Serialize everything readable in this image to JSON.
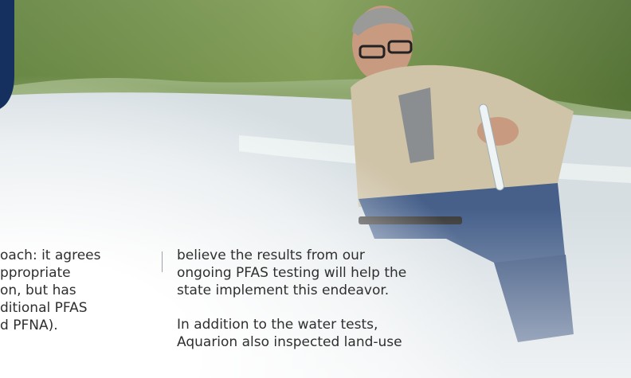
{
  "left_column": {
    "lines": [
      "oach: it agrees",
      "ppropriate",
      "on, but has",
      "ditional PFAS",
      "d PFNA)."
    ]
  },
  "right_column": {
    "paragraphs": [
      {
        "lines": [
          "believe the results from our",
          "ongoing PFAS testing will help the",
          "state implement this endeavor."
        ]
      },
      {
        "lines": [
          "In addition to the water tests,",
          "Aquarion also inspected land-use"
        ]
      }
    ]
  }
}
